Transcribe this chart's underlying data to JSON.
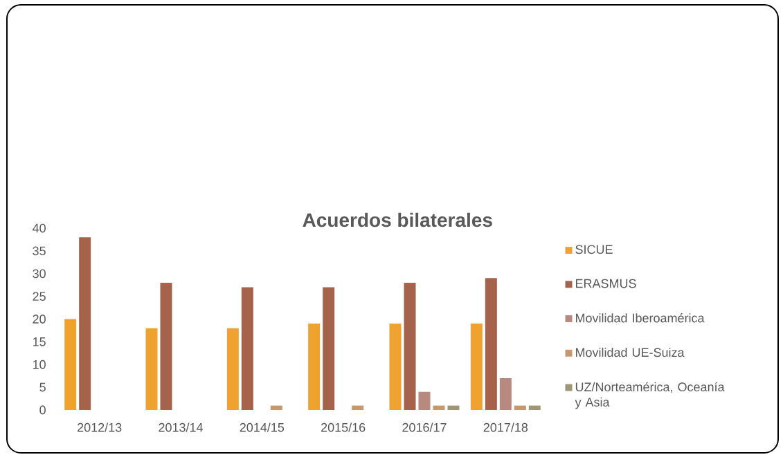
{
  "chart_data": {
    "type": "bar",
    "title": "Acuerdos bilaterales",
    "categories": [
      "2012/13",
      "2013/14",
      "2014/15",
      "2015/16",
      "2016/17",
      "2017/18"
    ],
    "series": [
      {
        "name": "SICUE",
        "color": "#f0a22e",
        "values": [
          20,
          18,
          18,
          19,
          19,
          19
        ]
      },
      {
        "name": "ERASMUS",
        "color": "#a5634b",
        "values": [
          38,
          28,
          27,
          27,
          28,
          29
        ]
      },
      {
        "name": "Movilidad Iberoamérica",
        "color": "#b88a7f",
        "values": [
          0,
          0,
          0,
          0,
          4,
          7
        ]
      },
      {
        "name": "Movilidad UE-Suiza",
        "color": "#c8976b",
        "values": [
          0,
          0,
          1,
          1,
          1,
          1
        ]
      },
      {
        "name": "UZ/Norteamérica, Oceanía y Asia",
        "color": "#9e9674",
        "values": [
          0,
          0,
          0,
          0,
          1,
          1
        ]
      }
    ],
    "ylim": [
      0,
      40
    ],
    "yticks": [
      0,
      5,
      10,
      15,
      20,
      25,
      30,
      35,
      40
    ],
    "grid": false,
    "legend": "right"
  }
}
